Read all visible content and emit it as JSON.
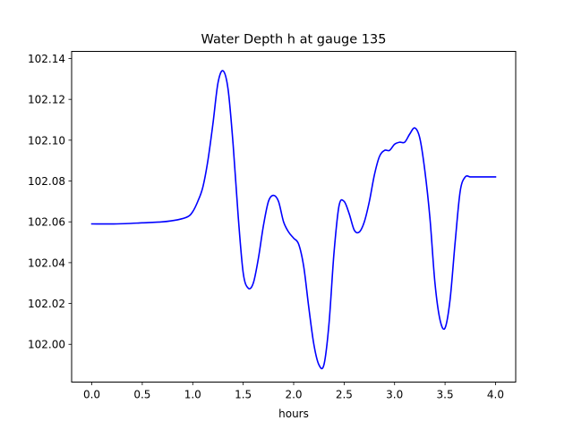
{
  "chart_data": {
    "type": "line",
    "title": "Water Depth h at gauge 135",
    "xlabel": "hours",
    "ylabel": "",
    "xlim": [
      -0.2,
      4.2
    ],
    "ylim": [
      101.9815,
      102.1435
    ],
    "xticks": [
      {
        "value": 0.0,
        "label": "0.0"
      },
      {
        "value": 0.5,
        "label": "0.5"
      },
      {
        "value": 1.0,
        "label": "1.0"
      },
      {
        "value": 1.5,
        "label": "1.5"
      },
      {
        "value": 2.0,
        "label": "2.0"
      },
      {
        "value": 2.5,
        "label": "2.5"
      },
      {
        "value": 3.0,
        "label": "3.0"
      },
      {
        "value": 3.5,
        "label": "3.5"
      },
      {
        "value": 4.0,
        "label": "4.0"
      }
    ],
    "yticks": [
      {
        "value": 102.0,
        "label": "102.00"
      },
      {
        "value": 102.02,
        "label": "102.02"
      },
      {
        "value": 102.04,
        "label": "102.04"
      },
      {
        "value": 102.06,
        "label": "102.06"
      },
      {
        "value": 102.08,
        "label": "102.08"
      },
      {
        "value": 102.1,
        "label": "102.10"
      },
      {
        "value": 102.12,
        "label": "102.12"
      },
      {
        "value": 102.14,
        "label": "102.14"
      }
    ],
    "grid": false,
    "series": [
      {
        "color": "#0000ff",
        "x": [
          0.0,
          0.25,
          0.5,
          0.7,
          0.85,
          0.95,
          1.0,
          1.05,
          1.1,
          1.15,
          1.2,
          1.25,
          1.3,
          1.35,
          1.4,
          1.45,
          1.5,
          1.55,
          1.6,
          1.65,
          1.7,
          1.75,
          1.8,
          1.85,
          1.9,
          1.95,
          2.0,
          2.05,
          2.1,
          2.15,
          2.2,
          2.25,
          2.3,
          2.35,
          2.4,
          2.45,
          2.5,
          2.55,
          2.6,
          2.65,
          2.7,
          2.75,
          2.8,
          2.85,
          2.9,
          2.95,
          3.0,
          3.05,
          3.1,
          3.15,
          3.2,
          3.25,
          3.3,
          3.35,
          3.4,
          3.45,
          3.5,
          3.55,
          3.6,
          3.65,
          3.7,
          3.75,
          3.8,
          3.85,
          3.9,
          3.95,
          4.0
        ],
        "y": [
          102.059,
          102.059,
          102.0595,
          102.06,
          102.061,
          102.0625,
          102.065,
          102.07,
          102.077,
          102.09,
          102.108,
          102.128,
          102.134,
          102.125,
          102.098,
          102.063,
          102.035,
          102.0275,
          102.03,
          102.042,
          102.058,
          102.07,
          102.073,
          102.07,
          102.06,
          102.055,
          102.052,
          102.049,
          102.038,
          102.018,
          102.0,
          101.99,
          101.99,
          102.01,
          102.045,
          102.068,
          102.07,
          102.064,
          102.056,
          102.055,
          102.06,
          102.07,
          102.083,
          102.092,
          102.095,
          102.095,
          102.098,
          102.099,
          102.099,
          102.103,
          102.106,
          102.101,
          102.085,
          102.062,
          102.03,
          102.012,
          102.008,
          102.022,
          102.05,
          102.075,
          102.082,
          102.082,
          102.082,
          102.082,
          102.082,
          102.082,
          102.082
        ]
      }
    ]
  }
}
